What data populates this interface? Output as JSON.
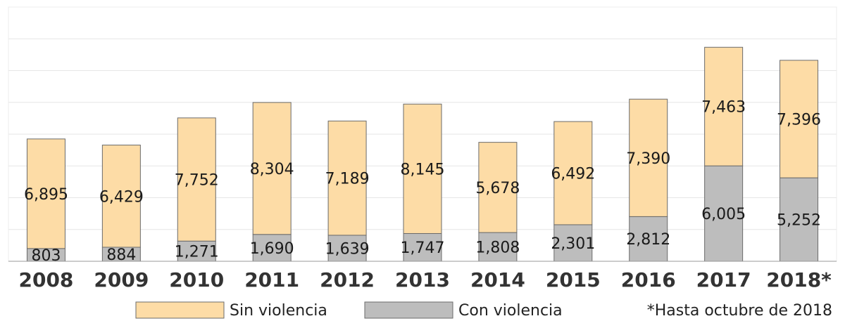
{
  "chart_data": {
    "type": "bar",
    "stacked": true,
    "categories": [
      "2008",
      "2009",
      "2010",
      "2011",
      "2012",
      "2013",
      "2014",
      "2015",
      "2016",
      "2017",
      "2018*"
    ],
    "series": [
      {
        "name": "Con violencia",
        "color": "#bdbdbd",
        "values": [
          803,
          884,
          1271,
          1690,
          1639,
          1747,
          1808,
          2301,
          2812,
          6005,
          5252
        ]
      },
      {
        "name": "Sin violencia",
        "color": "#fddca6",
        "values": [
          6895,
          6429,
          7752,
          8304,
          7189,
          8145,
          5678,
          6492,
          7390,
          7463,
          7396
        ]
      }
    ],
    "value_labels": {
      "Con violencia": [
        "803",
        "884",
        "1,271",
        "1,690",
        "1,639",
        "1,747",
        "1,808",
        "2,301",
        "2,812",
        "6,005",
        "5,252"
      ],
      "Sin violencia": [
        "6,895",
        "6,429",
        "7,752",
        "8,304",
        "7,189",
        "8,145",
        "5,678",
        "6,492",
        "7,390",
        "7,463",
        "7,396"
      ]
    },
    "ylim": [
      0,
      16000
    ],
    "grid": true,
    "legend_position": "bottom",
    "footnote": "*Hasta octubre de 2018"
  }
}
